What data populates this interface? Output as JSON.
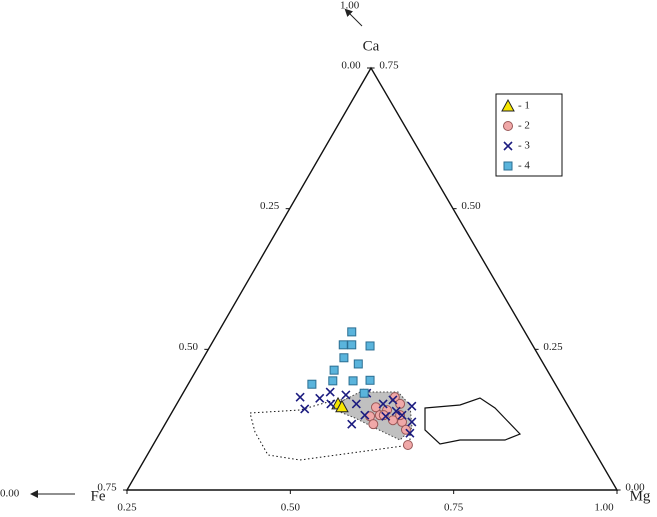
{
  "chart_data": {
    "type": "ternary",
    "corner_labels": {
      "top": "Ca",
      "left": "Fe",
      "right": "Mg"
    },
    "arrow_labels": {
      "top": {
        "value": 1,
        "label": "1.00"
      },
      "left": {
        "value": 0,
        "label": "0.00"
      }
    },
    "xlim": [
      0.25,
      1.0
    ],
    "ylim": [
      0,
      0.75
    ],
    "xticks": [
      0.25,
      {
        "value": 0.5,
        "label": "0.50"
      },
      0.75,
      {
        "value": 1,
        "label": "1.00"
      }
    ],
    "left_lim": [
      0,
      0.75
    ],
    "left_ticks": [
      {
        "value": 0,
        "label": "0.00"
      },
      0.25,
      {
        "value": 0.5,
        "label": "0.50"
      },
      0.75
    ],
    "right_lim": [
      0.75,
      0
    ],
    "right_ticks": [
      0.75,
      {
        "value": 0.5,
        "label": "0.50"
      },
      0.25,
      {
        "value": 0,
        "label": "0.00"
      }
    ],
    "series": [
      {
        "name": "- 1",
        "marker": "triangle",
        "color": "#f7e600",
        "x": [
          0.573,
          0.579
        ],
        "values": [
          0.153,
          0.148
        ]
      },
      {
        "name": "- 2",
        "marker": "circle",
        "color": "#f0a8a8",
        "x": [
          0.631,
          0.648,
          0.66,
          0.668,
          0.637,
          0.622,
          0.657,
          0.671,
          0.677,
          0.68,
          0.668,
          0.627,
          0.643
        ],
        "values": [
          0.147,
          0.142,
          0.165,
          0.153,
          0.133,
          0.131,
          0.124,
          0.121,
          0.107,
          0.08,
          0.133,
          0.117,
          0.133
        ]
      },
      {
        "name": "- 3",
        "marker": "cross",
        "color": "#1c1c80",
        "x": [
          0.515,
          0.545,
          0.522,
          0.561,
          0.562,
          0.585,
          0.601,
          0.617,
          0.642,
          0.657,
          0.662,
          0.646,
          0.683,
          0.686,
          0.686,
          0.671,
          0.594,
          0.614
        ],
        "values": [
          0.165,
          0.163,
          0.144,
          0.174,
          0.153,
          0.169,
          0.153,
          0.172,
          0.153,
          0.16,
          0.14,
          0.131,
          0.101,
          0.121,
          0.149,
          0.133,
          0.117,
          0.133
        ]
      },
      {
        "name": "- 4",
        "marker": "square",
        "color": "#5ab4dc",
        "x": [
          0.594,
          0.581,
          0.594,
          0.582,
          0.622,
          0.567,
          0.604,
          0.622,
          0.533,
          0.596,
          0.565,
          0.613
        ],
        "values": [
          0.281,
          0.258,
          0.258,
          0.235,
          0.256,
          0.213,
          0.224,
          0.195,
          0.188,
          0.194,
          0.194,
          0.172
        ]
      }
    ]
  }
}
